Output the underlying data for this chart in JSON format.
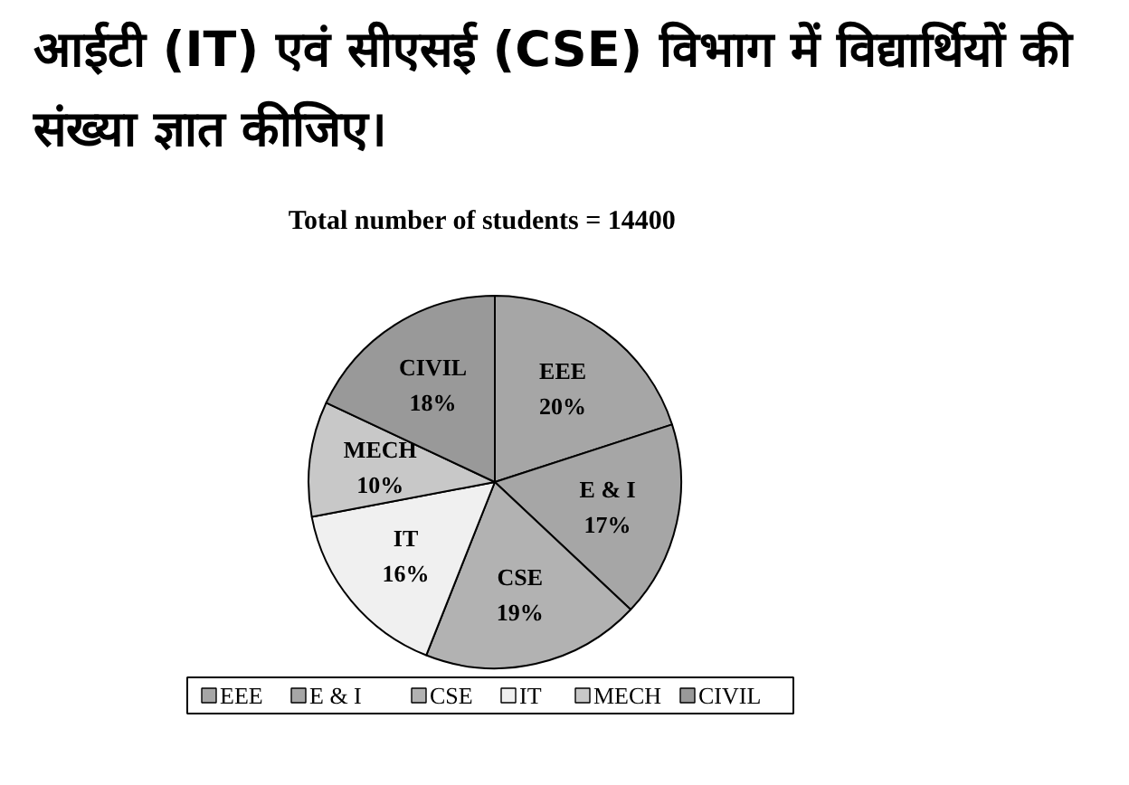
{
  "chart_data": {
    "type": "pie",
    "title": "आईटी (IT) एवं सीएसई (CSE) विभाग में विद्यार्थियों की संख्या ज्ञात कीजिए।",
    "subtitle": "Total number of students = 14400",
    "categories": [
      "EEE",
      "E & I",
      "CSE",
      "IT",
      "MECH",
      "CIVIL"
    ],
    "values": [
      20,
      17,
      19,
      16,
      10,
      18
    ],
    "value_labels": [
      "20%",
      "17%",
      "19%",
      "16%",
      "10%",
      "18%"
    ],
    "colors": [
      "#a6a6a6",
      "#a6a6a6",
      "#b2b2b2",
      "#f0f0f0",
      "#c8c8c8",
      "#999999"
    ],
    "legend": "bottom"
  }
}
